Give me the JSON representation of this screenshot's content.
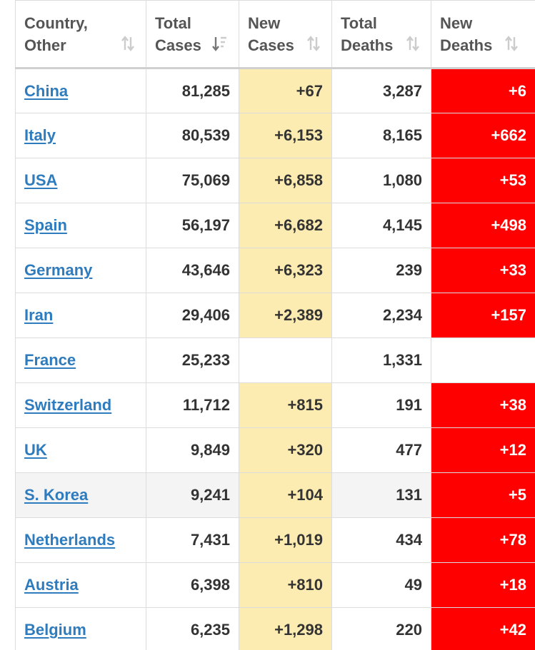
{
  "table": {
    "columns": [
      {
        "line1": "Country,",
        "line2": "Other",
        "sort_icon": "sort-icon"
      },
      {
        "line1": "Total",
        "line2": "Cases",
        "sort_icon": "sort-desc-active-icon"
      },
      {
        "line1": "New",
        "line2": "Cases",
        "sort_icon": "sort-icon"
      },
      {
        "line1": "Total",
        "line2": "Deaths",
        "sort_icon": "sort-icon"
      },
      {
        "line1": "New",
        "line2": "Deaths",
        "sort_icon": "sort-icon"
      }
    ],
    "rows": [
      {
        "country": "China",
        "total_cases": "81,285",
        "new_cases": "+67",
        "total_deaths": "3,287",
        "new_deaths": "+6"
      },
      {
        "country": "Italy",
        "total_cases": "80,539",
        "new_cases": "+6,153",
        "total_deaths": "8,165",
        "new_deaths": "+662"
      },
      {
        "country": "USA",
        "total_cases": "75,069",
        "new_cases": "+6,858",
        "total_deaths": "1,080",
        "new_deaths": "+53"
      },
      {
        "country": "Spain",
        "total_cases": "56,197",
        "new_cases": "+6,682",
        "total_deaths": "4,145",
        "new_deaths": "+498"
      },
      {
        "country": "Germany",
        "total_cases": "43,646",
        "new_cases": "+6,323",
        "total_deaths": "239",
        "new_deaths": "+33"
      },
      {
        "country": "Iran",
        "total_cases": "29,406",
        "new_cases": "+2,389",
        "total_deaths": "2,234",
        "new_deaths": "+157"
      },
      {
        "country": "France",
        "total_cases": "25,233",
        "new_cases": "",
        "total_deaths": "1,331",
        "new_deaths": ""
      },
      {
        "country": "Switzerland",
        "total_cases": "11,712",
        "new_cases": "+815",
        "total_deaths": "191",
        "new_deaths": "+38"
      },
      {
        "country": "UK",
        "total_cases": "9,849",
        "new_cases": "+320",
        "total_deaths": "477",
        "new_deaths": "+12"
      },
      {
        "country": "S. Korea",
        "total_cases": "9,241",
        "new_cases": "+104",
        "total_deaths": "131",
        "new_deaths": "+5",
        "highlighted": true
      },
      {
        "country": "Netherlands",
        "total_cases": "7,431",
        "new_cases": "+1,019",
        "total_deaths": "434",
        "new_deaths": "+78"
      },
      {
        "country": "Austria",
        "total_cases": "6,398",
        "new_cases": "+810",
        "total_deaths": "49",
        "new_deaths": "+18"
      },
      {
        "country": "Belgium",
        "total_cases": "6,235",
        "new_cases": "+1,298",
        "total_deaths": "220",
        "new_deaths": "+42"
      }
    ]
  },
  "colors": {
    "new_cases_bg": "#fdecb1",
    "new_deaths_bg": "#ff0000",
    "link": "#2e7bbd",
    "highlight_row": "#f4f4f4"
  }
}
